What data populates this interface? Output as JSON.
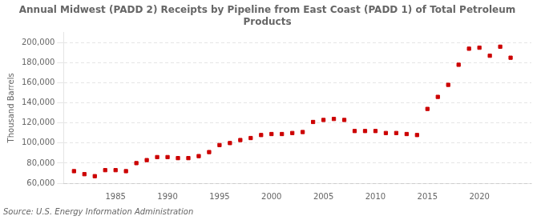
{
  "chart_data": {
    "type": "scatter",
    "title": "Annual Midwest (PADD 2) Receipts by Pipeline from East Coast (PADD 1) of Total Petroleum\nProducts",
    "ylabel": "Thousand Barrels",
    "source": "Source: U.S. Energy Information Administration",
    "color": "#cc0000",
    "marker": "square",
    "grid": "y",
    "xlim": [
      1980,
      2025
    ],
    "xticks": [
      1985,
      1990,
      1995,
      2000,
      2005,
      2010,
      2015,
      2020
    ],
    "ylim": [
      60000,
      210000
    ],
    "yticks": [
      {
        "value": 60000,
        "label": "60,000"
      },
      {
        "value": 80000,
        "label": "80,000"
      },
      {
        "value": 100000,
        "label": "100,000"
      },
      {
        "value": 120000,
        "label": "120,000"
      },
      {
        "value": 140000,
        "label": "140,000"
      },
      {
        "value": 160000,
        "label": "160,000"
      },
      {
        "value": 180000,
        "label": "180,000"
      },
      {
        "value": 200000,
        "label": "200,000"
      }
    ],
    "x": [
      1981,
      1982,
      1983,
      1984,
      1985,
      1986,
      1987,
      1988,
      1989,
      1990,
      1991,
      1992,
      1993,
      1994,
      1995,
      1996,
      1997,
      1998,
      1999,
      2000,
      2001,
      2002,
      2003,
      2004,
      2005,
      2006,
      2007,
      2008,
      2009,
      2010,
      2011,
      2012,
      2013,
      2014,
      2015,
      2016,
      2017,
      2018,
      2019,
      2020,
      2021,
      2022,
      2023
    ],
    "values": [
      72000,
      69000,
      67000,
      73000,
      73000,
      72000,
      80000,
      83000,
      86000,
      86000,
      85000,
      85000,
      87000,
      91000,
      98000,
      100000,
      103000,
      105000,
      108000,
      109000,
      109000,
      110000,
      111000,
      121000,
      123000,
      124000,
      123000,
      112000,
      112000,
      112000,
      110000,
      110000,
      109000,
      108000,
      134000,
      146000,
      158000,
      178000,
      194000,
      195000,
      187000,
      196000,
      185000
    ]
  }
}
